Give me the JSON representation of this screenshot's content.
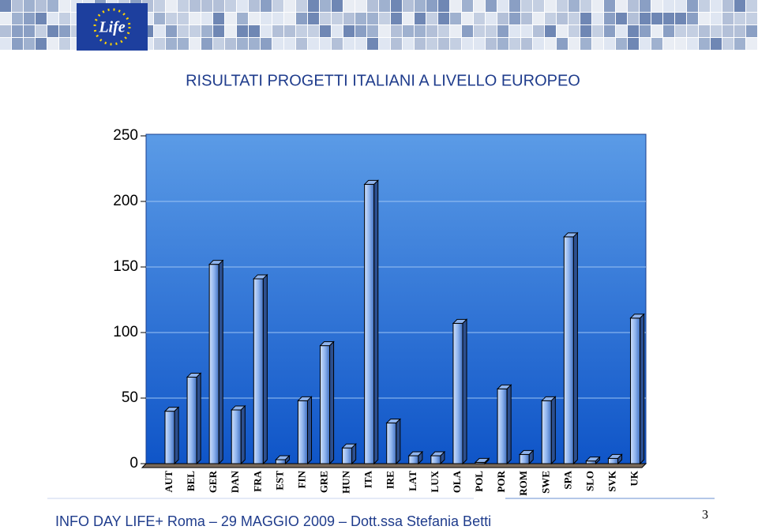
{
  "logo": "Life",
  "footer": "INFO DAY LIFE+ Roma – 29 MAGGIO 2009 – Dott.ssa Stefania Betti",
  "page_number": "3",
  "chart_data": {
    "type": "bar",
    "title": "RISULTATI PROGETTI ITALIANI A LIVELLO EUROPEO",
    "categories": [
      "AUT",
      "BEL",
      "GER",
      "DAN",
      "FRA",
      "EST",
      "FIN",
      "GRE",
      "HUN",
      "ITA",
      "IRE",
      "LAT",
      "LUX",
      "OLA",
      "POL",
      "POR",
      "ROM",
      "SWE",
      "SPA",
      "SLO",
      "SVK",
      "UK"
    ],
    "values": [
      40,
      66,
      152,
      41,
      141,
      3,
      48,
      90,
      12,
      213,
      31,
      6,
      6,
      107,
      1,
      57,
      7,
      48,
      173,
      2,
      4,
      111
    ],
    "color": "#8fb4ee",
    "ylim": [
      0,
      250
    ],
    "yticks": [
      0,
      50,
      100,
      150,
      200,
      250
    ],
    "grid": true
  }
}
